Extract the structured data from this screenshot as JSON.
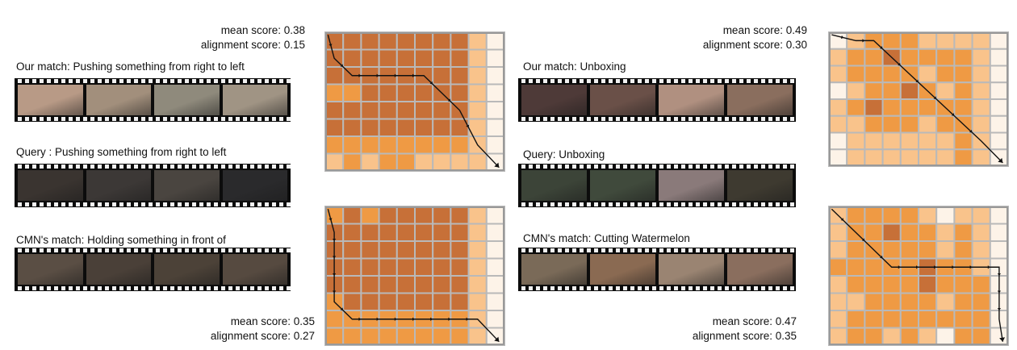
{
  "left": {
    "top_scores": {
      "mean": "mean score: 0.38",
      "alignment": "alignment score: 0.15"
    },
    "bottom_scores": {
      "mean": "mean score: 0.35",
      "alignment": "alignment score: 0.27"
    },
    "labels": {
      "our_match": "Our match: Pushing something from right to left",
      "query": "Query : Pushing something from right to left",
      "cmn_match": "CMN's match: Holding something in front of"
    },
    "film_colors": {
      "our_match": [
        "#b89a86",
        "#a28f7c",
        "#8f8a7c",
        "#a09484"
      ],
      "query": [
        "#3a3430",
        "#3c3836",
        "#4a4540",
        "#2a2a2c"
      ],
      "cmn_match": [
        "#5a4e44",
        "#4a4038",
        "#4c4238",
        "#564a40"
      ]
    },
    "top_matrix": {
      "cols": 10,
      "rows": 8,
      "cells": [
        [
          3,
          3,
          3,
          3,
          3,
          3,
          3,
          3,
          1,
          0
        ],
        [
          3,
          3,
          3,
          3,
          3,
          3,
          3,
          3,
          1,
          0
        ],
        [
          3,
          3,
          3,
          3,
          3,
          3,
          3,
          3,
          1,
          0
        ],
        [
          2,
          2,
          3,
          3,
          3,
          3,
          3,
          3,
          1,
          0
        ],
        [
          3,
          3,
          3,
          3,
          3,
          3,
          3,
          3,
          1,
          0
        ],
        [
          3,
          3,
          3,
          3,
          3,
          3,
          3,
          3,
          1,
          0
        ],
        [
          2,
          2,
          2,
          2,
          2,
          2,
          2,
          2,
          1,
          0
        ],
        [
          1,
          2,
          1,
          2,
          2,
          1,
          1,
          1,
          1,
          0
        ]
      ],
      "path": [
        [
          0,
          0
        ],
        [
          0,
          1
        ],
        [
          1,
          2
        ],
        [
          2,
          2
        ],
        [
          3,
          2
        ],
        [
          4,
          2
        ],
        [
          5,
          2
        ],
        [
          6,
          3
        ],
        [
          7,
          4
        ],
        [
          8,
          6
        ],
        [
          9,
          7
        ]
      ]
    },
    "bottom_matrix": {
      "cols": 10,
      "rows": 8,
      "cells": [
        [
          2,
          3,
          2,
          3,
          3,
          3,
          3,
          3,
          1,
          0
        ],
        [
          3,
          3,
          3,
          3,
          3,
          3,
          3,
          3,
          1,
          0
        ],
        [
          3,
          3,
          3,
          3,
          3,
          3,
          3,
          3,
          1,
          0
        ],
        [
          3,
          3,
          3,
          3,
          3,
          3,
          3,
          3,
          1,
          0
        ],
        [
          3,
          3,
          3,
          3,
          3,
          3,
          3,
          3,
          1,
          0
        ],
        [
          2,
          3,
          3,
          3,
          3,
          3,
          3,
          3,
          1,
          0
        ],
        [
          2,
          2,
          2,
          2,
          2,
          2,
          2,
          2,
          1,
          0
        ],
        [
          2,
          2,
          2,
          2,
          2,
          2,
          2,
          2,
          1,
          0
        ]
      ],
      "path": [
        [
          0,
          0
        ],
        [
          0,
          1
        ],
        [
          0,
          2
        ],
        [
          0,
          3
        ],
        [
          0,
          4
        ],
        [
          0,
          5
        ],
        [
          1,
          6
        ],
        [
          2,
          6
        ],
        [
          3,
          6
        ],
        [
          4,
          6
        ],
        [
          5,
          6
        ],
        [
          6,
          6
        ],
        [
          7,
          6
        ],
        [
          8,
          6
        ],
        [
          9,
          7
        ]
      ]
    }
  },
  "right": {
    "top_scores": {
      "mean": "mean score: 0.49",
      "alignment": "alignment score: 0.30"
    },
    "bottom_scores": {
      "mean": "mean score: 0.47",
      "alignment": "alignment score: 0.35"
    },
    "labels": {
      "our_match": "Our match: Unboxing",
      "query": "Query: Unboxing",
      "cmn_match": "CMN's match: Cutting Watermelon"
    },
    "film_colors": {
      "our_match": [
        "#4e3a38",
        "#6a5048",
        "#b09080",
        "#8a6e5e"
      ],
      "query": [
        "#3c4438",
        "#404a3c",
        "#8a7a7a",
        "#3e3a30"
      ],
      "cmn_match": [
        "#7a6a58",
        "#8a6a52",
        "#9a8472",
        "#8a6e5e"
      ]
    },
    "top_matrix": {
      "cols": 10,
      "rows": 8,
      "cells": [
        [
          0,
          1,
          2,
          2,
          2,
          1,
          1,
          1,
          1,
          0
        ],
        [
          1,
          2,
          2,
          3,
          2,
          2,
          2,
          2,
          1,
          0
        ],
        [
          1,
          2,
          2,
          2,
          2,
          1,
          2,
          2,
          1,
          0
        ],
        [
          0,
          1,
          2,
          2,
          3,
          2,
          1,
          2,
          1,
          0
        ],
        [
          1,
          2,
          3,
          2,
          2,
          2,
          2,
          2,
          1,
          0
        ],
        [
          1,
          1,
          2,
          2,
          2,
          1,
          2,
          2,
          1,
          0
        ],
        [
          0,
          1,
          1,
          1,
          1,
          1,
          1,
          2,
          1,
          0
        ],
        [
          0,
          1,
          1,
          1,
          1,
          1,
          1,
          2,
          1,
          0
        ]
      ],
      "path": [
        [
          0,
          0
        ],
        [
          1,
          0
        ],
        [
          2,
          0
        ],
        [
          3,
          1
        ],
        [
          4,
          2
        ],
        [
          5,
          3
        ],
        [
          6,
          4
        ],
        [
          7,
          5
        ],
        [
          8,
          6
        ],
        [
          9,
          7
        ]
      ]
    },
    "bottom_matrix": {
      "cols": 10,
      "rows": 8,
      "cells": [
        [
          1,
          2,
          2,
          2,
          2,
          1,
          0,
          1,
          1,
          0
        ],
        [
          1,
          2,
          2,
          3,
          2,
          2,
          1,
          2,
          1,
          0
        ],
        [
          1,
          2,
          2,
          2,
          2,
          2,
          1,
          2,
          1,
          0
        ],
        [
          2,
          2,
          2,
          2,
          2,
          3,
          2,
          2,
          1,
          0
        ],
        [
          1,
          2,
          2,
          2,
          2,
          3,
          2,
          2,
          2,
          0
        ],
        [
          1,
          1,
          2,
          2,
          2,
          2,
          1,
          2,
          2,
          0
        ],
        [
          1,
          2,
          2,
          2,
          2,
          2,
          2,
          2,
          2,
          0
        ],
        [
          1,
          2,
          2,
          1,
          2,
          1,
          0,
          2,
          2,
          0
        ]
      ],
      "path": [
        [
          0,
          0
        ],
        [
          1,
          1
        ],
        [
          2,
          2
        ],
        [
          3,
          3
        ],
        [
          4,
          3
        ],
        [
          5,
          3
        ],
        [
          6,
          3
        ],
        [
          7,
          3
        ],
        [
          8,
          3
        ],
        [
          9,
          3
        ],
        [
          9,
          4
        ],
        [
          9,
          5
        ],
        [
          9,
          6
        ],
        [
          9,
          7
        ]
      ]
    }
  },
  "palette": [
    "#fdf3e8",
    "#f9c38b",
    "#ef9a44",
    "#c77038"
  ],
  "grid_color": "#b9b9b9",
  "path_color": "#111111"
}
